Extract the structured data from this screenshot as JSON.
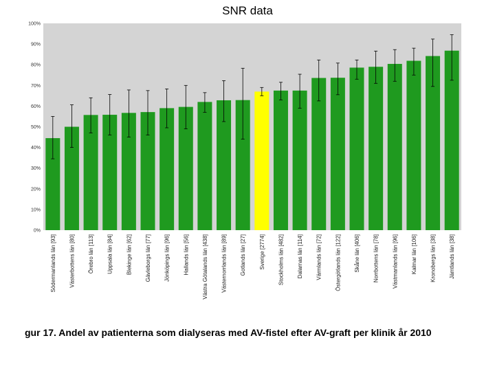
{
  "page": {
    "title": "SNR data"
  },
  "caption": "gur 17. Andel av patienterna som dialyseras med AV-fistel efter AV-graft per klinik år 2010",
  "chart_data": {
    "type": "bar",
    "title": "SNR data",
    "xlabel": "",
    "ylabel": "",
    "ylim": [
      0,
      100
    ],
    "yticks": [
      "0%",
      "10%",
      "20%",
      "30%",
      "40%",
      "50%",
      "60%",
      "70%",
      "80%",
      "90%",
      "100%"
    ],
    "grid": false,
    "legend": "none",
    "colors": {
      "bar": "#1f9a1f",
      "highlight": "#ffff00",
      "plot_bg": "#d4d4d4",
      "error_bar": "#000000"
    },
    "highlight_category": "Sverige [2774]",
    "categories": [
      "Södermanlands län [93]",
      "Västerbottens län [80]",
      "Örebro län [113]",
      "Uppsala län [84]",
      "Blekinge län [62]",
      "Gävleborgs län [77]",
      "Jönköpings län [96]",
      "Hallands län [56]",
      "Västra Götalands län [438]",
      "Västernorrlands län [89]",
      "Gotlands län [27]",
      "Sverige [2774]",
      "Stockholms län [482]",
      "Dalarnas län [114]",
      "Värmlands län [72]",
      "Östergötlands län [122]",
      "Skåne län [406]",
      "Norrbottens län [78]",
      "Västmanlands län [96]",
      "Kalmar län [106]",
      "Kronobergs län [38]",
      "Jämtlands län [38]"
    ],
    "values": [
      44.5,
      50,
      55.7,
      55.8,
      56.7,
      57.1,
      59,
      59.6,
      62,
      62.8,
      62.9,
      67,
      67.5,
      67.5,
      73.6,
      73.7,
      78.6,
      79,
      80.4,
      81.9,
      84.2,
      86.8
    ],
    "error_low": [
      34.5,
      40,
      47,
      46,
      45,
      46,
      49.5,
      49,
      57,
      52.5,
      44,
      65,
      63,
      59,
      62.5,
      65.5,
      73,
      71,
      72,
      75,
      69.5,
      72.5
    ],
    "error_high": [
      55,
      60.6,
      64,
      65.6,
      67.8,
      67.5,
      68.3,
      70,
      66.5,
      72.3,
      78.3,
      69,
      71.5,
      75.4,
      82.3,
      80.8,
      82.3,
      86.6,
      87.3,
      88,
      92.4,
      94.5
    ]
  }
}
